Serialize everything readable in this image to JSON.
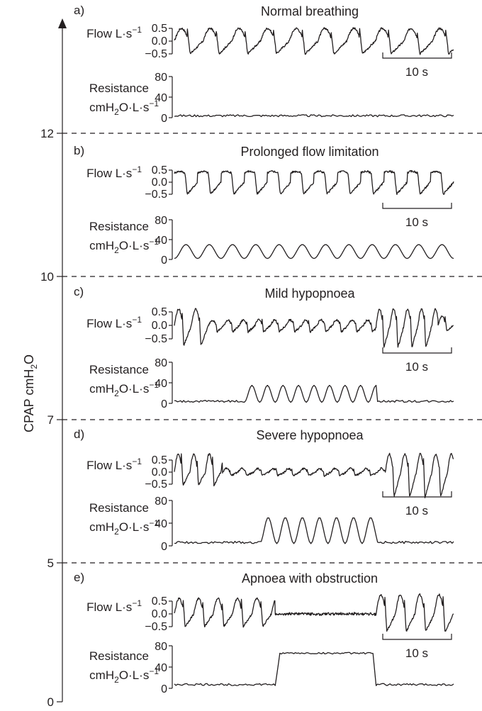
{
  "figure": {
    "y_axis_label": "CPAP cmH2O",
    "flow_label": "Flow L·s",
    "resistance_label_1": "Resistance",
    "resistance_label_2": "cmH2O·L·s",
    "superscript_minus1": "−1",
    "scale_bar_label": "10 s",
    "flow_ticks": [
      "0.5",
      "0.0",
      "−0.5"
    ],
    "resistance_ticks": [
      "80",
      "40",
      "0"
    ],
    "cpap_ticks": [
      "12",
      "10",
      "7",
      "5",
      "0"
    ]
  },
  "chart_data": [
    {
      "type": "line",
      "panel": "a)",
      "title": "Normal breathing",
      "cpap_range": [
        12,
        20
      ],
      "time_s": 36,
      "scale_bar_s": 10,
      "flow_ylim": [
        -0.5,
        0.5
      ],
      "resistance_ylim": [
        0,
        80
      ],
      "series": [
        {
          "name": "Flow",
          "units": "L·s−1",
          "breaths": [
            {
              "t": 0,
              "p": 3.7,
              "a": 0.5,
              "b": -0.5
            }
          ]
        },
        {
          "name": "Resistance",
          "units": "cmH2O·L·s−1",
          "mean": 3,
          "noise": 4
        }
      ]
    },
    {
      "type": "line",
      "panel": "b)",
      "title": "Prolonged flow limitation",
      "cpap_range": [
        10,
        12
      ],
      "time_s": 36,
      "scale_bar_s": 10,
      "flow_ylim": [
        -0.5,
        0.5
      ],
      "resistance_ylim": [
        0,
        80
      ],
      "series": [
        {
          "name": "Flow",
          "units": "L·s−1",
          "breaths": [
            {
              "t": 0,
              "p": 3.0,
              "a": 0.45,
              "b": -0.5,
              "flat": true
            }
          ]
        },
        {
          "name": "Resistance",
          "units": "cmH2O·L·s−1",
          "oscillation": {
            "period": 3.0,
            "min": 2,
            "max": 30
          }
        }
      ]
    },
    {
      "type": "line",
      "panel": "c)",
      "title": "Mild hypopnoea",
      "cpap_range": [
        7,
        10
      ],
      "time_s": 36,
      "scale_bar_s": 10,
      "flow_ylim": [
        -0.5,
        0.5
      ],
      "resistance_ylim": [
        0,
        80
      ],
      "series": [
        {
          "name": "Flow",
          "units": "L·s−1",
          "breaths": [
            {
              "t": 0,
              "p": 2.2,
              "a": 0.6,
              "b": -0.75
            },
            {
              "t": 4.4,
              "p": 2.0,
              "a": 0.2,
              "b": -0.25
            },
            {
              "t": 26,
              "p": 1.8,
              "a": 0.6,
              "b": -0.85
            },
            {
              "t": 34,
              "p": 2.0,
              "a": 0.35,
              "b": -0.2
            }
          ]
        },
        {
          "name": "Resistance",
          "units": "cmH2O·L·s−1",
          "oscillation": {
            "period": 2.0,
            "min": 2,
            "max": 35,
            "t0": 9,
            "t1": 26
          }
        }
      ]
    },
    {
      "type": "line",
      "panel": "d)",
      "title": "Severe hypopnoea",
      "cpap_range": [
        5,
        7
      ],
      "time_s": 36,
      "scale_bar_s": 10,
      "flow_ylim": [
        -0.5,
        0.5
      ],
      "resistance_ylim": [
        0,
        80
      ],
      "series": [
        {
          "name": "Flow",
          "units": "L·s−1",
          "breaths": [
            {
              "t": 0,
              "p": 2.0,
              "a": 0.75,
              "b": -0.55
            },
            {
              "t": 6.2,
              "p": 2.0,
              "a": 0.15,
              "b": -0.15
            },
            {
              "t": 27.2,
              "p": 2.0,
              "a": 0.75,
              "b": -1.05
            }
          ]
        },
        {
          "name": "Resistance",
          "units": "cmH2O·L·s−1",
          "oscillation": {
            "period": 2.2,
            "min": 4,
            "max": 50,
            "t0": 11,
            "t1": 26
          }
        }
      ]
    },
    {
      "type": "line",
      "panel": "e)",
      "title": "Apnoea with obstruction",
      "cpap_range": [
        0,
        5
      ],
      "time_s": 36,
      "scale_bar_s": 10,
      "flow_ylim": [
        -0.5,
        0.5
      ],
      "resistance_ylim": [
        0,
        80
      ],
      "series": [
        {
          "name": "Flow",
          "units": "L·s−1",
          "breaths": [
            {
              "t": 0,
              "p": 2.5,
              "a": 0.6,
              "b": -0.5
            },
            {
              "t": 13,
              "p": 13,
              "a": 0.0,
              "b": 0.0
            },
            {
              "t": 26,
              "p": 2.5,
              "a": 0.75,
              "b": -0.7
            }
          ]
        },
        {
          "name": "Resistance",
          "units": "cmH2O·L·s−1",
          "plateau": {
            "t0": 13,
            "t1": 26,
            "level": 66,
            "base": 5
          }
        }
      ]
    }
  ]
}
